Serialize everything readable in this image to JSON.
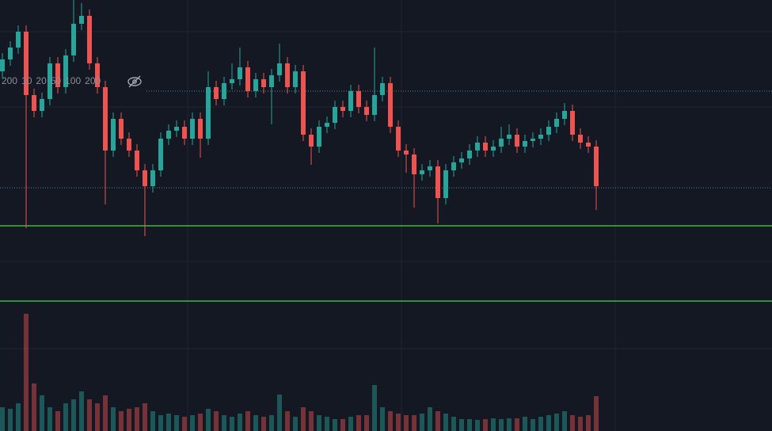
{
  "chart_data": {
    "type": "candlestick",
    "legend_labels": [
      "200",
      "10",
      "20",
      "50",
      "100",
      "200"
    ],
    "up_color": "#26a69a",
    "down_color": "#ef5350",
    "level_color": "#3ddc4a",
    "price_line_color": "#5d7a99",
    "levels": [
      259,
      164
    ],
    "price_lines": [
      429,
      307
    ],
    "open": [
      454,
      469,
      484,
      504,
      424,
      404,
      419,
      464,
      434,
      474,
      514,
      524,
      464,
      434,
      354,
      394,
      369,
      354,
      329,
      309,
      329,
      369,
      379,
      384,
      369,
      394,
      369,
      434,
      419,
      439,
      444,
      459,
      429,
      444,
      434,
      449,
      464,
      434,
      454,
      374,
      359,
      384,
      389,
      409,
      404,
      429,
      409,
      399,
      424,
      439,
      384,
      354,
      349,
      324,
      329,
      334,
      294,
      329,
      339,
      344,
      354,
      364,
      354,
      359,
      369,
      374,
      359,
      366,
      369,
      374,
      384,
      394,
      404,
      374,
      364,
      359
    ],
    "high": [
      477,
      492,
      512,
      512,
      432,
      427,
      472,
      472,
      482,
      544,
      540,
      532,
      472,
      442,
      402,
      402,
      377,
      362,
      337,
      337,
      377,
      387,
      392,
      392,
      402,
      402,
      454,
      442,
      447,
      464,
      484,
      467,
      452,
      452,
      457,
      489,
      472,
      462,
      462,
      382,
      392,
      397,
      417,
      417,
      437,
      437,
      417,
      484,
      447,
      447,
      392,
      362,
      357,
      337,
      342,
      342,
      337,
      347,
      352,
      362,
      372,
      372,
      367,
      384,
      387,
      382,
      374,
      377,
      382,
      392,
      402,
      414,
      412,
      382,
      372,
      367
    ],
    "low": [
      446,
      461,
      476,
      256,
      396,
      396,
      411,
      426,
      426,
      466,
      506,
      456,
      426,
      286,
      346,
      361,
      346,
      321,
      246,
      301,
      321,
      361,
      371,
      361,
      361,
      345,
      361,
      411,
      411,
      431,
      436,
      421,
      421,
      426,
      387,
      441,
      426,
      426,
      366,
      336,
      351,
      376,
      381,
      396,
      396,
      401,
      391,
      391,
      416,
      376,
      346,
      326,
      282,
      316,
      321,
      262,
      286,
      321,
      331,
      336,
      346,
      346,
      346,
      351,
      361,
      351,
      351,
      358,
      361,
      366,
      376,
      386,
      366,
      356,
      351,
      279
    ],
    "close": [
      469,
      484,
      504,
      424,
      404,
      419,
      464,
      434,
      474,
      514,
      524,
      464,
      434,
      354,
      394,
      369,
      354,
      329,
      309,
      329,
      369,
      379,
      384,
      369,
      394,
      369,
      434,
      419,
      439,
      444,
      459,
      429,
      444,
      434,
      449,
      464,
      434,
      454,
      374,
      359,
      384,
      389,
      409,
      404,
      429,
      409,
      399,
      424,
      439,
      384,
      354,
      349,
      324,
      329,
      334,
      294,
      329,
      339,
      344,
      354,
      364,
      354,
      359,
      369,
      374,
      359,
      366,
      369,
      374,
      384,
      394,
      404,
      374,
      364,
      359,
      309
    ],
    "volume": [
      30,
      28,
      35,
      148,
      60,
      45,
      30,
      25,
      35,
      40,
      50,
      40,
      35,
      45,
      30,
      25,
      28,
      30,
      35,
      25,
      20,
      22,
      20,
      18,
      20,
      22,
      28,
      25,
      20,
      18,
      22,
      25,
      20,
      18,
      20,
      46,
      25,
      18,
      30,
      25,
      20,
      18,
      15,
      15,
      18,
      20,
      20,
      58,
      30,
      25,
      22,
      20,
      20,
      22,
      30,
      25,
      22,
      18,
      15,
      15,
      14,
      15,
      16,
      15,
      16,
      16,
      18,
      15,
      18,
      20,
      22,
      25,
      20,
      18,
      20,
      44
    ]
  }
}
